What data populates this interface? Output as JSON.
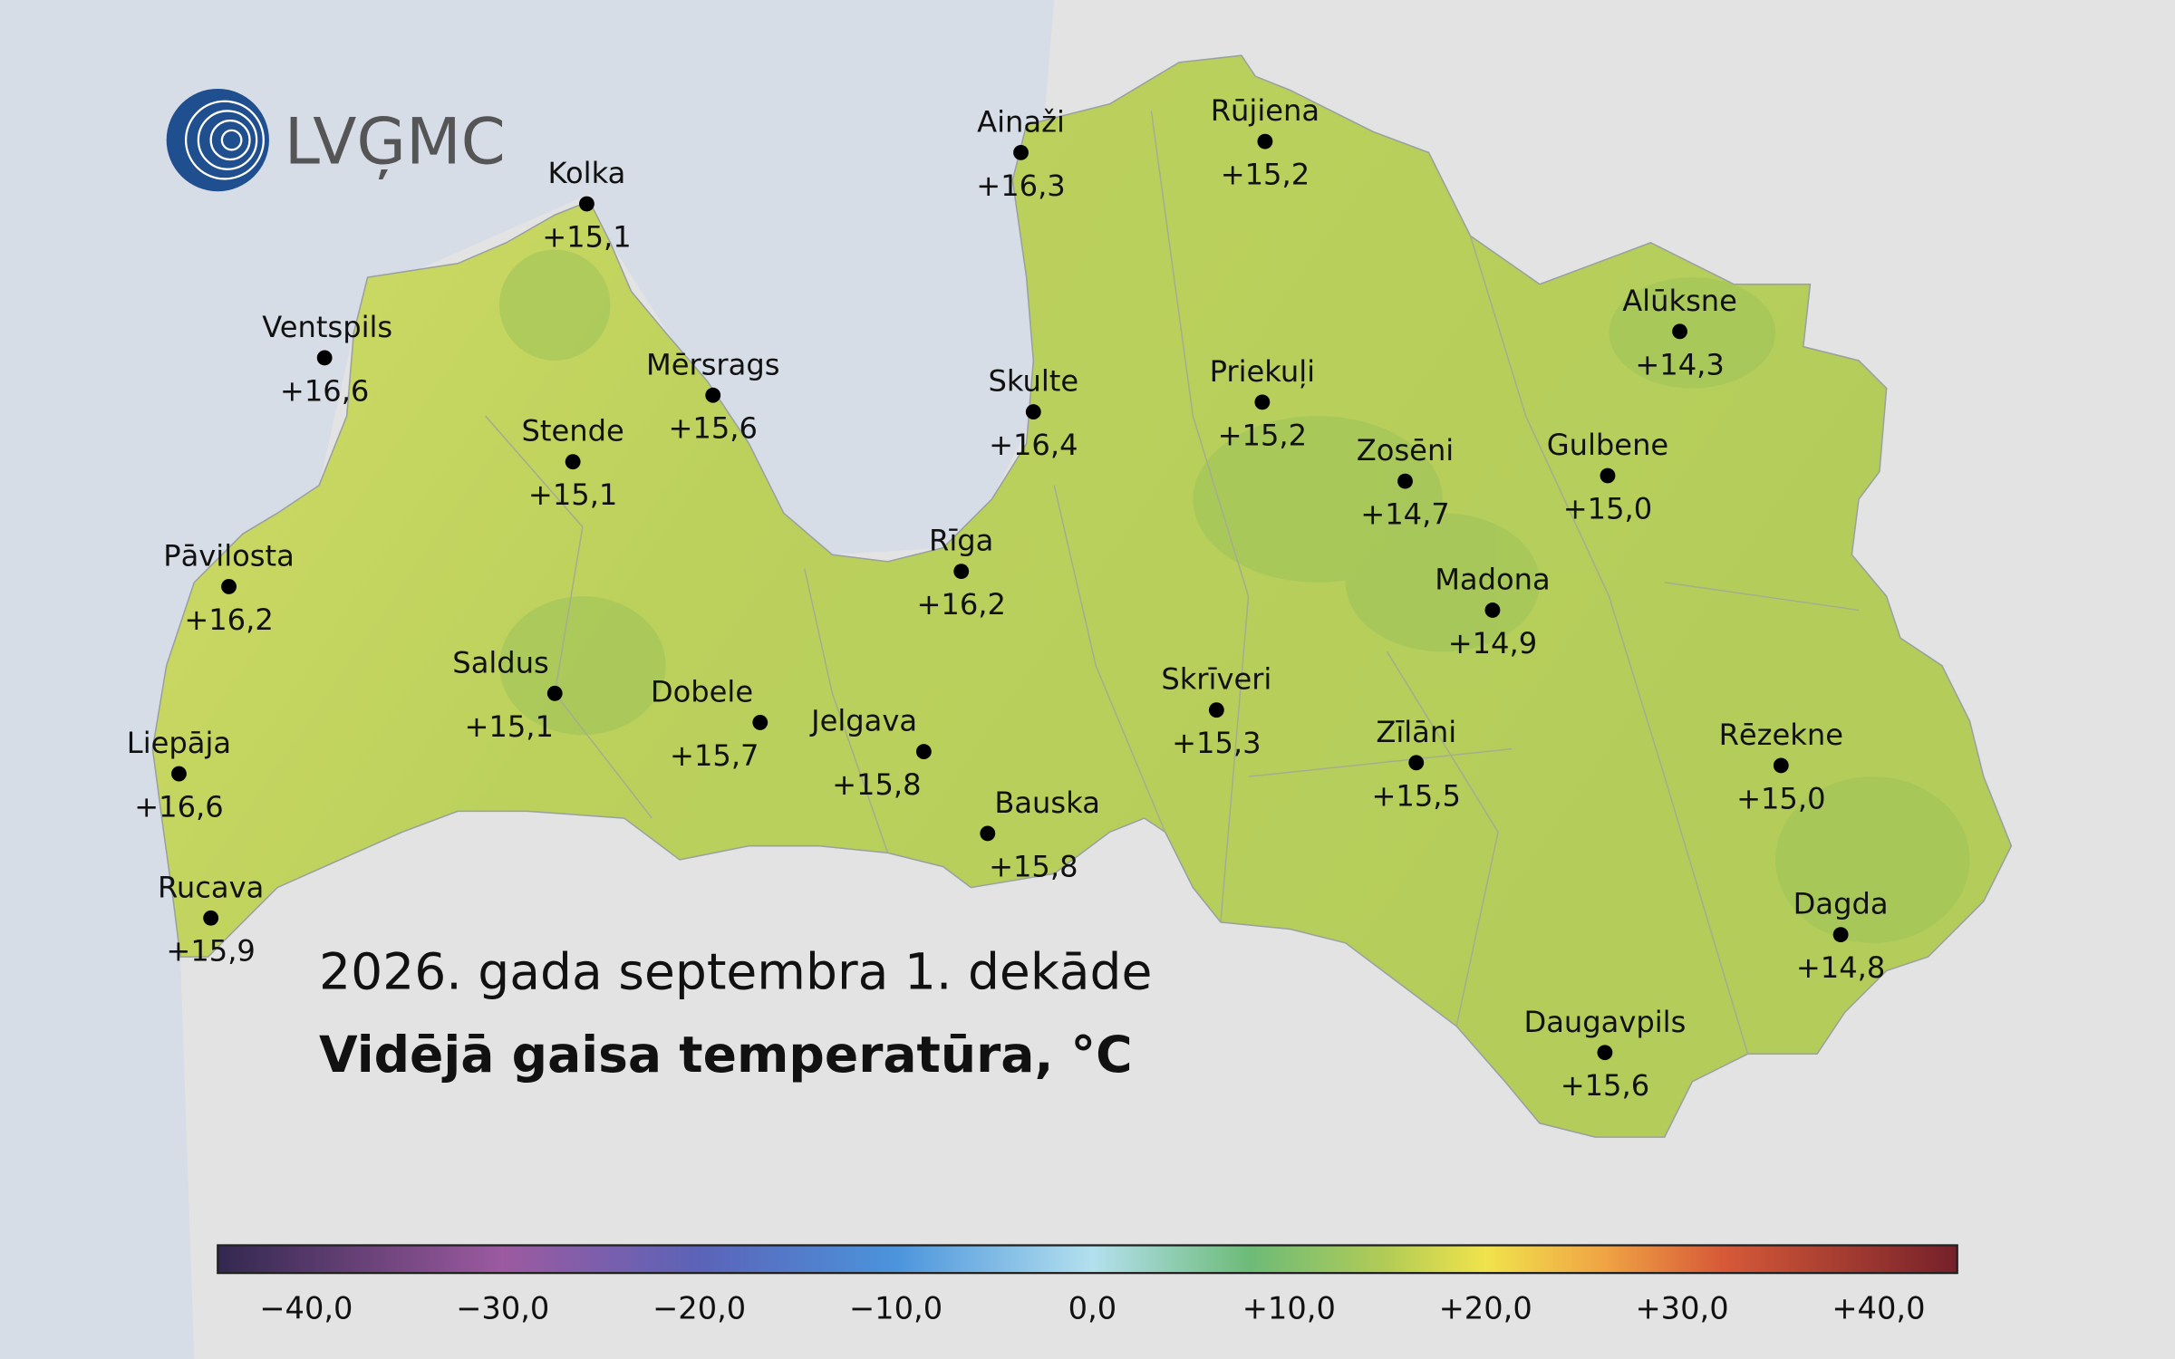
{
  "logo": "LVĢMC",
  "title": "2026. gada septembra 1. dekāde",
  "subtitle": "Vidējā gaisa temperatūra, °C",
  "stations": [
    {
      "name": "Kolka",
      "temperature": "+15,1"
    },
    {
      "name": "Ventspils",
      "temperature": "+16,6"
    },
    {
      "name": "Mērsrags",
      "temperature": "+15,6"
    },
    {
      "name": "Stende",
      "temperature": "+15,1"
    },
    {
      "name": "Pāvilosta",
      "temperature": "+16,2"
    },
    {
      "name": "Saldus",
      "temperature": "+15,1"
    },
    {
      "name": "Dobele",
      "temperature": "+15,7"
    },
    {
      "name": "Liepāja",
      "temperature": "+16,6"
    },
    {
      "name": "Jelgava",
      "temperature": "+15,8"
    },
    {
      "name": "Rucava",
      "temperature": "+15,9"
    },
    {
      "name": "Bauska",
      "temperature": "+15,8"
    },
    {
      "name": "Ainaži",
      "temperature": "+16,3"
    },
    {
      "name": "Rūjiena",
      "temperature": "+15,2"
    },
    {
      "name": "Skulte",
      "temperature": "+16,4"
    },
    {
      "name": "Rīga",
      "temperature": "+16,2"
    },
    {
      "name": "Priekuļi",
      "temperature": "+15,2"
    },
    {
      "name": "Zosēni",
      "temperature": "+14,7"
    },
    {
      "name": "Gulbene",
      "temperature": "+15,0"
    },
    {
      "name": "Alūksne",
      "temperature": "+14,3"
    },
    {
      "name": "Madona",
      "temperature": "+14,9"
    },
    {
      "name": "Skrīveri",
      "temperature": "+15,3"
    },
    {
      "name": "Zīlāni",
      "temperature": "+15,5"
    },
    {
      "name": "Rēzekne",
      "temperature": "+15,0"
    },
    {
      "name": "Dagda",
      "temperature": "+14,8"
    },
    {
      "name": "Daugavpils",
      "temperature": "+15,6"
    }
  ],
  "colorbar": {
    "range": [
      -44.5,
      44
    ],
    "stops": [
      {
        "value": -44.5,
        "color": "#33284f"
      },
      {
        "value": -30,
        "color": "#9c5aa0"
      },
      {
        "value": -20,
        "color": "#5b63b8"
      },
      {
        "value": -10,
        "color": "#4b94dc"
      },
      {
        "value": 0,
        "color": "#b3e0ee"
      },
      {
        "value": 8,
        "color": "#6dbb78"
      },
      {
        "value": 15,
        "color": "#b3cc55"
      },
      {
        "value": 20,
        "color": "#f0e34c"
      },
      {
        "value": 26,
        "color": "#f0a444"
      },
      {
        "value": 32,
        "color": "#d75a38"
      },
      {
        "value": 44,
        "color": "#75202a"
      }
    ],
    "ticks": [
      {
        "value": -40,
        "label": "−40,0"
      },
      {
        "value": -30,
        "label": "−30,0"
      },
      {
        "value": -20,
        "label": "−20,0"
      },
      {
        "value": -10,
        "label": "−10,0"
      },
      {
        "value": 0,
        "label": "0,0"
      },
      {
        "value": 10,
        "label": "+10,0"
      },
      {
        "value": 20,
        "label": "+20,0"
      },
      {
        "value": 30,
        "label": "+30,0"
      },
      {
        "value": 40,
        "label": "+40,0"
      }
    ]
  }
}
